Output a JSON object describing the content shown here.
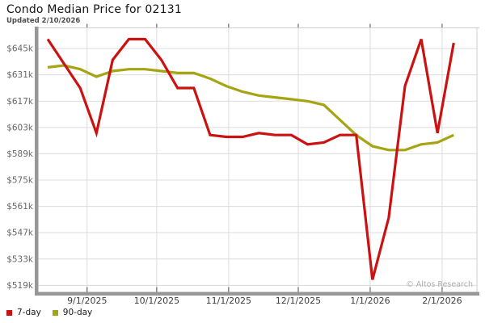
{
  "header": {
    "title": "Condo Median Price for 02131",
    "updated": "Updated 2/10/2026"
  },
  "watermark": "© Altos Research",
  "colors": {
    "series_7day": "#cc1111",
    "series_90day": "#a5a413",
    "gridline": "#dcdcdc",
    "axis_bar": "#979797",
    "tick": "#4a4a4a",
    "y_label": "#666666",
    "x_label": "#3d3d3d",
    "plot_border": "#cfcfcf"
  },
  "chart_data": {
    "type": "line",
    "title": "Condo Median Price for 02131",
    "subtitle": "Updated 2/10/2026",
    "xlabel": "",
    "ylabel": "",
    "grid": true,
    "legend_position": "bottom-left",
    "x_domain": [
      "8/11/2025",
      "2/16/2026"
    ],
    "ylim": [
      515.5,
      656
    ],
    "x_ticks": [
      "9/1/2025",
      "10/1/2025",
      "11/1/2025",
      "12/1/2025",
      "1/1/2026",
      "2/1/2026"
    ],
    "y_ticks": [
      {
        "value": 645,
        "label": "$645k"
      },
      {
        "value": 631,
        "label": "$631k"
      },
      {
        "value": 617,
        "label": "$617k"
      },
      {
        "value": 603,
        "label": "$603k"
      },
      {
        "value": 589,
        "label": "$589k"
      },
      {
        "value": 575,
        "label": "$575k"
      },
      {
        "value": 561,
        "label": "$561k"
      },
      {
        "value": 547,
        "label": "$547k"
      },
      {
        "value": 533,
        "label": "$533k"
      },
      {
        "value": 519,
        "label": "$519k"
      }
    ],
    "y_unit": "thousand USD",
    "x": [
      "8/15/2025",
      "8/22/2025",
      "8/29/2025",
      "9/5/2025",
      "9/12/2025",
      "9/19/2025",
      "9/26/2025",
      "10/3/2025",
      "10/10/2025",
      "10/17/2025",
      "10/24/2025",
      "10/31/2025",
      "11/7/2025",
      "11/14/2025",
      "11/21/2025",
      "11/28/2025",
      "12/5/2025",
      "12/12/2025",
      "12/19/2025",
      "12/26/2025",
      "1/2/2026",
      "1/9/2026",
      "1/16/2026",
      "1/23/2026",
      "1/30/2026",
      "2/6/2026"
    ],
    "series": [
      {
        "name": "7-day",
        "color": "#cc1111",
        "values": [
          650,
          637,
          624,
          600,
          639,
          650,
          650,
          639,
          624,
          624,
          599,
          598,
          598,
          600,
          599,
          599,
          594,
          595,
          599,
          599,
          522,
          555,
          625,
          650,
          600,
          648
        ]
      },
      {
        "name": "90-day",
        "color": "#a5a413",
        "values": [
          635,
          636,
          634,
          630,
          633,
          634,
          634,
          633,
          632,
          632,
          629,
          625,
          622,
          620,
          619,
          618,
          617,
          615,
          607,
          599,
          593,
          591,
          591,
          594,
          595,
          599
        ]
      }
    ]
  }
}
